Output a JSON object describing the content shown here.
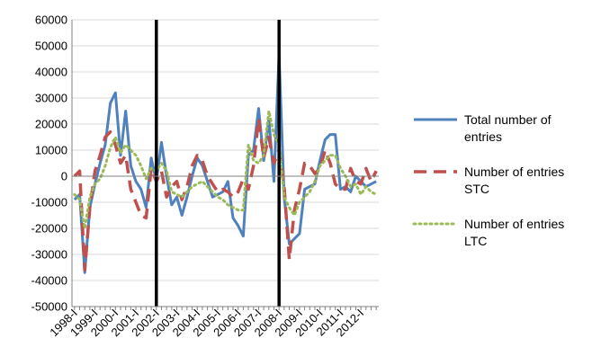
{
  "chart_data": {
    "type": "line",
    "title": "",
    "xlabel": "",
    "ylabel": "",
    "ylim": [
      -50000,
      60000
    ],
    "ytick_step": 10000,
    "grid": "horizontal",
    "legend_position": "right",
    "x_tick_labels": [
      "1998-I",
      "1999-I",
      "2000-I",
      "2001-I",
      "2002-I",
      "2003-I",
      "2004-I",
      "2005-I",
      "2006-I",
      "2007-I",
      "2008-I",
      "2009-I",
      "2010-I",
      "2011-I",
      "2012-I"
    ],
    "x": [
      "1998-I",
      "1998-II",
      "1998-III",
      "1998-IV",
      "1999-I",
      "1999-II",
      "1999-III",
      "1999-IV",
      "2000-I",
      "2000-II",
      "2000-III",
      "2000-IV",
      "2001-I",
      "2001-II",
      "2001-III",
      "2001-IV",
      "2002-I",
      "2002-II",
      "2002-III",
      "2002-IV",
      "2003-I",
      "2003-II",
      "2003-III",
      "2003-IV",
      "2004-I",
      "2004-II",
      "2004-III",
      "2004-IV",
      "2005-I",
      "2005-II",
      "2005-III",
      "2005-IV",
      "2006-I",
      "2006-II",
      "2006-III",
      "2006-IV",
      "2007-I",
      "2007-II",
      "2007-III",
      "2007-IV",
      "2008-I",
      "2008-II",
      "2008-III",
      "2008-IV",
      "2009-I",
      "2009-II",
      "2009-III",
      "2009-IV",
      "2010-I",
      "2010-II",
      "2010-III",
      "2010-IV",
      "2011-I",
      "2011-II",
      "2011-III",
      "2011-IV",
      "2012-I",
      "2012-II",
      "2012-III",
      "2012-IV"
    ],
    "vertical_markers": [
      "2002-I",
      "2008-I"
    ],
    "series": [
      {
        "name": "Total number of entries",
        "color": "#4F81BD",
        "style": "solid",
        "values": [
          -9000,
          -7000,
          -37000,
          -12000,
          -3000,
          5000,
          12000,
          28000,
          32000,
          8000,
          25000,
          4000,
          -2000,
          -5000,
          -12000,
          7000,
          -2000,
          13000,
          0,
          -11000,
          -8000,
          -15000,
          -8000,
          0,
          7000,
          4000,
          -2000,
          -8000,
          -7000,
          -6000,
          -2000,
          -16000,
          -19000,
          -23000,
          8000,
          10000,
          26000,
          6000,
          22000,
          -2000,
          47000,
          -8000,
          -26000,
          -24000,
          -22000,
          -5000,
          -4000,
          -3000,
          6000,
          14000,
          16000,
          16000,
          -5000,
          -4000,
          -6000,
          0,
          -2000,
          -4000,
          -3000,
          -2000
        ]
      },
      {
        "name": "Number of entries STC",
        "color": "#C0504D",
        "style": "dashed",
        "values": [
          0,
          2000,
          -36000,
          -12000,
          2000,
          8000,
          15000,
          17000,
          12000,
          5000,
          8000,
          -5000,
          -10000,
          -15000,
          -16000,
          3000,
          -2000,
          2000,
          -8000,
          -4000,
          -2000,
          -9000,
          -4000,
          4000,
          8000,
          6000,
          0,
          -3000,
          -6000,
          -5000,
          -6000,
          -8000,
          -6000,
          -1000,
          -5000,
          4000,
          22000,
          7000,
          15000,
          5000,
          10000,
          -4000,
          -32000,
          -13000,
          -5000,
          5000,
          4000,
          1000,
          3000,
          10000,
          5000,
          -3000,
          -5000,
          -5000,
          3000,
          -2000,
          -3000,
          3000,
          -2000,
          2000
        ]
      },
      {
        "name": "Number of entries LTC",
        "color": "#9BBB59",
        "style": "dotted",
        "values": [
          -7000,
          -9000,
          -20000,
          -8000,
          -3000,
          -1000,
          4000,
          11000,
          15000,
          9000,
          12000,
          10000,
          8000,
          4000,
          -1000,
          3000,
          2000,
          5000,
          2000,
          -6000,
          -7000,
          -8000,
          -6000,
          -4000,
          -3000,
          -2000,
          -4000,
          -6000,
          -8000,
          -9000,
          -11000,
          -12000,
          -13000,
          -13000,
          12000,
          6000,
          5000,
          8000,
          25000,
          16000,
          12000,
          -8000,
          -12000,
          -15000,
          -10000,
          -8000,
          -6000,
          -2000,
          4000,
          6000,
          8000,
          8000,
          3000,
          0,
          -4000,
          -3000,
          -7000,
          -4000,
          -6000,
          -7000
        ]
      }
    ]
  }
}
